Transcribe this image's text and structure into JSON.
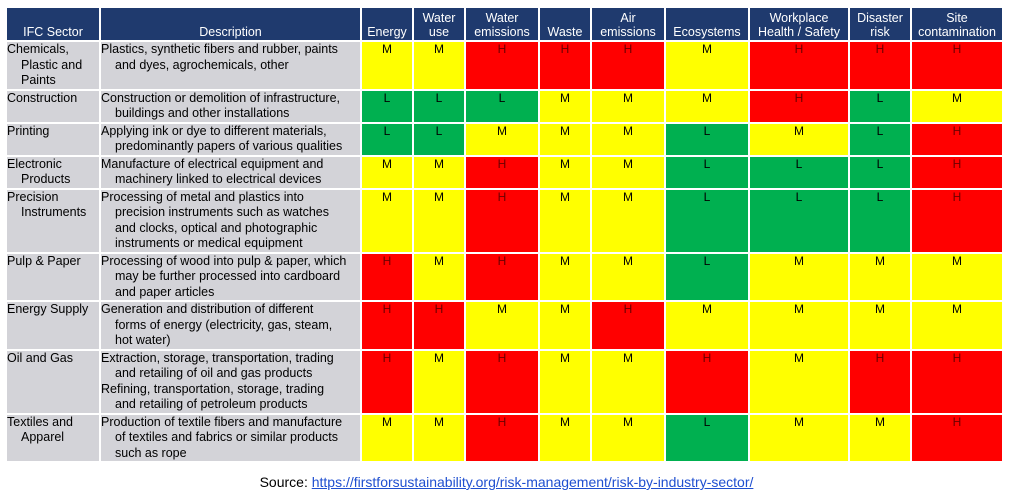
{
  "headers": {
    "sector": "IFC Sector",
    "description": "Description",
    "cols": [
      [
        "Energy"
      ],
      [
        "Water",
        "use"
      ],
      [
        "Water",
        "emissions"
      ],
      [
        "Waste"
      ],
      [
        "Air",
        "emissions"
      ],
      [
        "Ecosystems"
      ],
      [
        "Workplace",
        "Health / Safety"
      ],
      [
        "Disaster",
        "risk"
      ],
      [
        "Site",
        "contamination"
      ]
    ]
  },
  "rows": [
    {
      "sector": [
        "Chemicals,",
        "Plastic and",
        "Paints"
      ],
      "description": [
        "Plastics, synthetic fibers and rubber, paints",
        "and dyes, agrochemicals, other"
      ],
      "levels": [
        "M",
        "M",
        "H",
        "H",
        "H",
        "M",
        "H",
        "H",
        "H"
      ]
    },
    {
      "sector": [
        "Construction"
      ],
      "description": [
        "Construction or demolition of infrastructure,",
        "buildings and other installations"
      ],
      "levels": [
        "L",
        "L",
        "L",
        "M",
        "M",
        "M",
        "H",
        "L",
        "M"
      ]
    },
    {
      "sector": [
        "Printing"
      ],
      "description": [
        "Applying ink or dye to different materials,",
        "predominantly papers of various qualities"
      ],
      "levels": [
        "L",
        "L",
        "M",
        "M",
        "M",
        "L",
        "M",
        "L",
        "H"
      ]
    },
    {
      "sector": [
        "Electronic",
        "Products"
      ],
      "description": [
        "Manufacture of electrical equipment and",
        "machinery linked to electrical devices"
      ],
      "levels": [
        "M",
        "M",
        "H",
        "M",
        "M",
        "L",
        "L",
        "L",
        "H"
      ]
    },
    {
      "sector": [
        "Precision",
        "Instruments"
      ],
      "description": [
        "Processing of metal and plastics into",
        "precision instruments such as watches",
        "and clocks, optical and photographic",
        "instruments or medical equipment"
      ],
      "levels": [
        "M",
        "M",
        "H",
        "M",
        "M",
        "L",
        "L",
        "L",
        "H"
      ]
    },
    {
      "sector": [
        "Pulp & Paper"
      ],
      "description": [
        "Processing of wood into pulp & paper, which",
        "may be further processed into cardboard",
        "and paper articles"
      ],
      "levels": [
        "H",
        "M",
        "H",
        "M",
        "M",
        "L",
        "M",
        "M",
        "M"
      ]
    },
    {
      "sector": [
        "Energy Supply"
      ],
      "description": [
        "Generation and distribution of different",
        "forms of energy (electricity, gas, steam,",
        "hot water)"
      ],
      "levels": [
        "H",
        "H",
        "M",
        "M",
        "H",
        "M",
        "M",
        "M",
        "M"
      ]
    },
    {
      "sector": [
        "Oil and Gas"
      ],
      "description": [
        "Extraction, storage, transportation, trading",
        "and retailing of oil and gas products",
        "Refining, transportation, storage, trading",
        "and retailing of petroleum products"
      ],
      "desc_indent": [
        false,
        true,
        false,
        true
      ],
      "levels": [
        "H",
        "M",
        "H",
        "M",
        "M",
        "H",
        "M",
        "H",
        "H"
      ]
    },
    {
      "sector": [
        "Textiles and",
        "Apparel"
      ],
      "description": [
        "Production of textile fibers and manufacture",
        "of textiles and fabrics or similar products",
        "such as rope"
      ],
      "levels": [
        "M",
        "M",
        "H",
        "M",
        "M",
        "L",
        "M",
        "M",
        "H"
      ]
    }
  ],
  "level_colors": {
    "H": "#ff0000",
    "M": "#ffff00",
    "L": "#00b050"
  },
  "header_color": "#1f3a6e",
  "source": {
    "label": "Source:",
    "url_text": "https://firstforsustainability.org/risk-management/risk-by-industry-sector/"
  }
}
